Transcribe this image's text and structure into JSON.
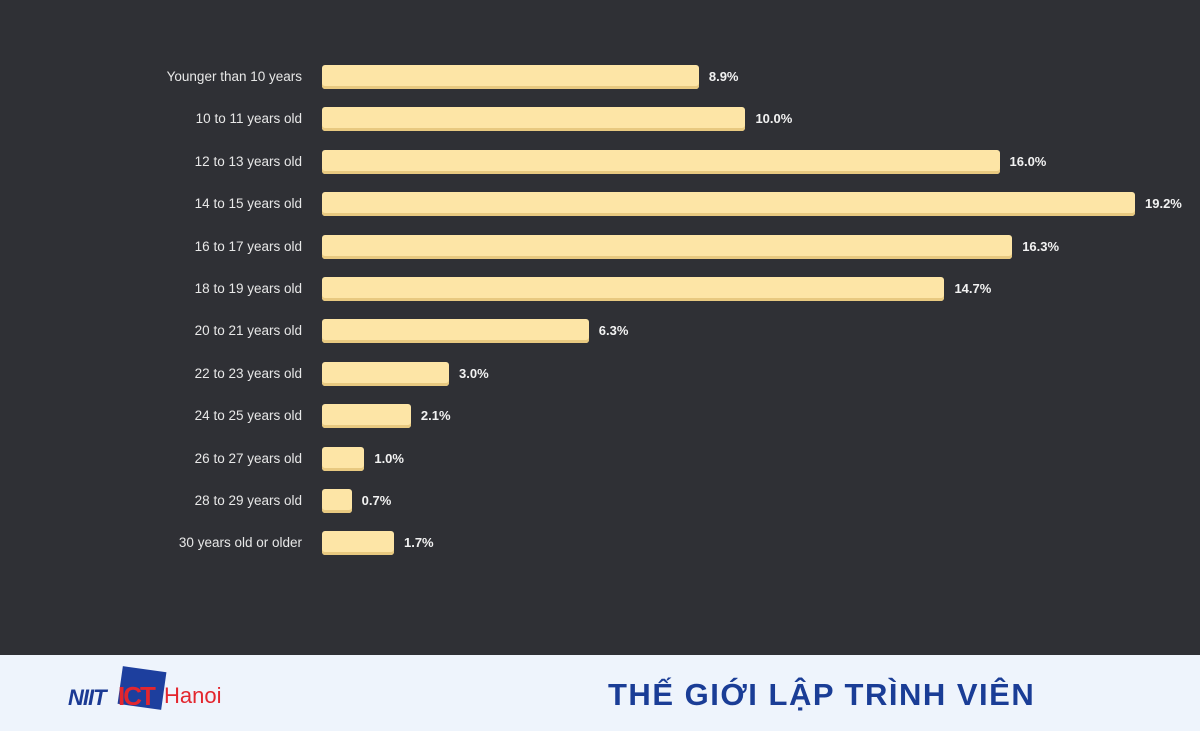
{
  "chart_data": {
    "type": "bar",
    "orientation": "horizontal",
    "categories": [
      "Younger than 10 years",
      "10 to 11 years old",
      "12 to 13 years old",
      "14 to 15 years old",
      "16 to 17 years old",
      "18 to 19 years old",
      "20 to 21 years old",
      "22 to 23 years old",
      "24 to 25 years old",
      "26 to 27 years old",
      "28 to 29 years old",
      "30 years old or older"
    ],
    "values": [
      8.9,
      10.0,
      16.0,
      19.2,
      16.3,
      14.7,
      6.3,
      3.0,
      2.1,
      1.0,
      0.7,
      1.7
    ],
    "labels": [
      "8.9%",
      "10.0%",
      "16.0%",
      "19.2%",
      "16.3%",
      "14.7%",
      "6.3%",
      "3.0%",
      "2.1%",
      "1.0%",
      "0.7%",
      "1.7%"
    ],
    "unit": "%",
    "title": "",
    "xlabel": "",
    "ylabel": "",
    "xlim": [
      0,
      19.2
    ],
    "grid": false,
    "bar_color": "#fde5a6"
  },
  "footer": {
    "logo_text": {
      "niit": "NIIT",
      "ict": "ICT",
      "city": "Hanoi"
    },
    "slogan": "THẾ GIỚI LẬP TRÌNH VIÊN"
  }
}
